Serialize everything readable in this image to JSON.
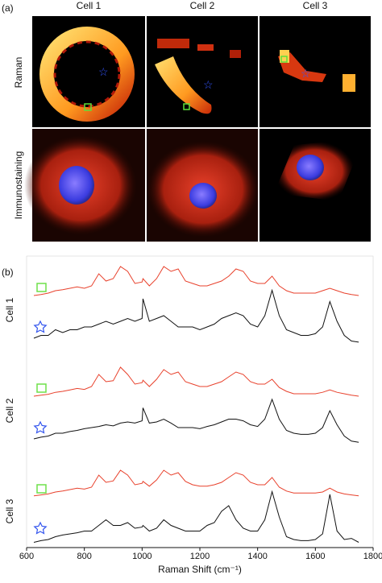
{
  "panel_a": {
    "label": "(a)",
    "columns": [
      "Cell 1",
      "Cell 2",
      "Cell 3"
    ],
    "rows": [
      "Raman",
      "Immunostaining"
    ]
  },
  "chart_data": {
    "type": "line",
    "label": "(b)",
    "x_label": "Raman Shift (cm⁻¹)",
    "xlim": [
      600,
      1800
    ],
    "xticks": [
      600,
      800,
      1000,
      1200,
      1400,
      1600,
      1800
    ],
    "x": [
      625,
      650,
      675,
      700,
      725,
      750,
      775,
      800,
      825,
      850,
      875,
      900,
      925,
      950,
      975,
      1000,
      1003,
      1025,
      1050,
      1075,
      1100,
      1125,
      1150,
      1175,
      1200,
      1225,
      1250,
      1275,
      1300,
      1325,
      1350,
      1375,
      1400,
      1425,
      1450,
      1475,
      1500,
      1525,
      1550,
      1575,
      1600,
      1625,
      1650,
      1675,
      1700,
      1725,
      1750
    ],
    "rows": [
      {
        "label": "Cell 1",
        "series": [
          {
            "color": "#e8412c",
            "values": [
              1,
              1.2,
              1.5,
              2,
              2.2,
              2.5,
              2.8,
              2.5,
              3,
              5.5,
              4,
              4.5,
              7,
              6,
              3.5,
              3.8,
              4.5,
              3,
              4.5,
              7,
              6,
              6.5,
              4,
              3.5,
              3,
              3,
              3.5,
              4,
              5,
              6.5,
              6,
              4,
              3.5,
              3.5,
              5,
              3,
              2,
              1.5,
              1.5,
              1.5,
              1.5,
              2,
              2.5,
              2,
              1.5,
              1.2,
              1
            ]
          },
          {
            "color": "#111111",
            "values": [
              1,
              1.5,
              1.5,
              2.5,
              2,
              2.5,
              2.5,
              3,
              3,
              3.5,
              4,
              3.5,
              4,
              4.5,
              4,
              4.5,
              8,
              4,
              4.5,
              5,
              4,
              3,
              3,
              3,
              2.5,
              3,
              3.5,
              4.5,
              5,
              5.5,
              5,
              3.5,
              3,
              5,
              9.5,
              5,
              2.5,
              2,
              1.5,
              1.5,
              1.8,
              3,
              7.5,
              4,
              1.5,
              0.5,
              0.3
            ]
          }
        ]
      },
      {
        "label": "Cell 2",
        "series": [
          {
            "color": "#e8412c",
            "values": [
              1,
              1.2,
              1.4,
              1.8,
              2,
              2.3,
              2.6,
              2.4,
              3,
              5.5,
              4,
              4.2,
              7,
              5.5,
              3.5,
              3.8,
              4.3,
              3,
              4.5,
              6.5,
              5.5,
              6,
              4,
              3.5,
              3,
              3,
              3.5,
              4,
              5,
              6,
              5.5,
              4,
              3.5,
              3.5,
              4.5,
              2.8,
              2,
              1.5,
              1.5,
              1.5,
              1.5,
              1.8,
              2.3,
              1.8,
              1.5,
              1.2,
              1
            ]
          },
          {
            "color": "#111111",
            "values": [
              1,
              1.3,
              1.5,
              2,
              2,
              2.3,
              2.5,
              2.8,
              3,
              3.2,
              3.5,
              3.3,
              3.8,
              4,
              3.8,
              4.2,
              6.5,
              3.8,
              4,
              4.5,
              3.8,
              3,
              3,
              3,
              2.8,
              3.2,
              3.5,
              4,
              4.5,
              4.5,
              4.2,
              3.5,
              3.2,
              4.5,
              8,
              4.5,
              2.5,
              2,
              1.8,
              1.8,
              2,
              3,
              6,
              3.5,
              1.5,
              0.6,
              0.4
            ]
          }
        ]
      },
      {
        "label": "Cell 3",
        "series": [
          {
            "color": "#e8412c",
            "values": [
              1.2,
              1.4,
              1.6,
              2,
              2.2,
              2.5,
              2.8,
              2.6,
              3,
              5.5,
              4,
              4.3,
              6.5,
              5.5,
              3.5,
              3.8,
              4.2,
              3.2,
              4.5,
              6.5,
              5.5,
              6,
              4.2,
              3.5,
              3.2,
              3.2,
              3.5,
              4,
              5,
              6,
              5.5,
              4,
              3.5,
              3.5,
              5,
              3,
              2.2,
              1.8,
              1.8,
              1.8,
              1.8,
              2,
              2.8,
              2,
              1.6,
              1.4,
              1.2
            ]
          },
          {
            "color": "#111111",
            "values": [
              0.5,
              0.8,
              1,
              1.5,
              1.8,
              2,
              2.2,
              2.5,
              2.5,
              3.5,
              4.5,
              3.5,
              3.5,
              4,
              3,
              3.2,
              3.5,
              2.5,
              3,
              4.5,
              3.5,
              3,
              2.5,
              2.5,
              2.5,
              3.5,
              4,
              6,
              7,
              4.5,
              3,
              2.5,
              2.5,
              4.5,
              9.5,
              5,
              1.5,
              1,
              0.8,
              0.8,
              1,
              2,
              9,
              2.5,
              1,
              1.2,
              0.5
            ]
          }
        ]
      }
    ]
  }
}
